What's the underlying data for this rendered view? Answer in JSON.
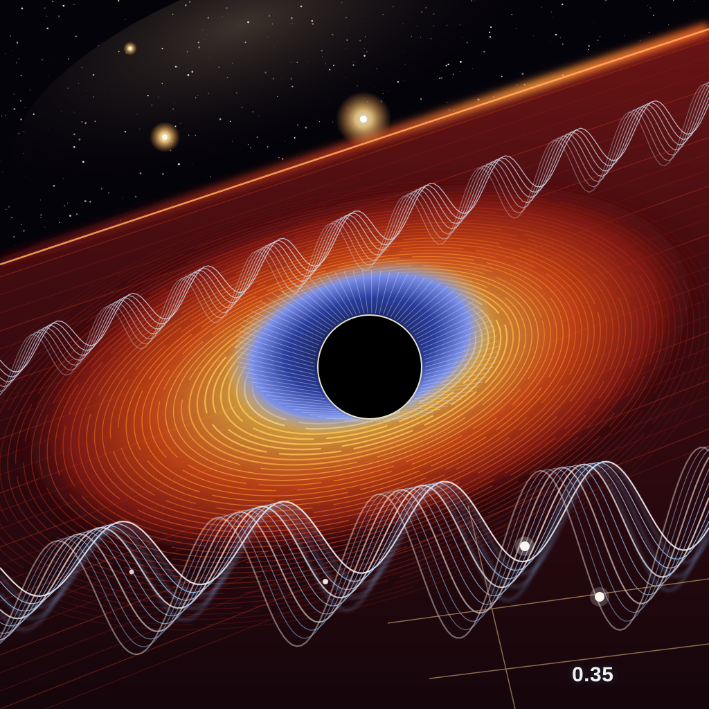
{
  "image": {
    "kind": "illustration",
    "colors": {
      "space": "#05030a",
      "disk_outer": "#7a1410",
      "disk_mid": "#e2561a",
      "disk_inner": "#ffd36a",
      "inner_blue": "#3a63d8",
      "wave": "#cfe6ff",
      "star_glow": "#ffcf7a"
    }
  },
  "annotation": {
    "value": "0.35"
  }
}
